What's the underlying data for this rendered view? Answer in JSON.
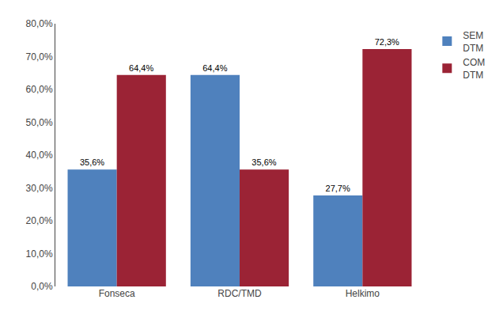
{
  "chart_data": {
    "type": "bar",
    "categories": [
      "Fonseca",
      "RDC/TMD",
      "Helkimo"
    ],
    "series": [
      {
        "name": "SEM\nDTM",
        "color": "#4F81BD",
        "values": [
          35.6,
          64.4,
          27.7
        ],
        "value_labels": [
          "35,6%",
          "64,4%",
          "27,7%"
        ]
      },
      {
        "name": "COM\nDTM",
        "color": "#9B2335",
        "values": [
          64.4,
          35.6,
          72.3
        ],
        "value_labels": [
          "64,4%",
          "35,6%",
          "72,3%"
        ]
      }
    ],
    "ylim": [
      0,
      80
    ],
    "yticks": [
      {
        "value": 0,
        "label": "0,0%"
      },
      {
        "value": 10,
        "label": "10,0%"
      },
      {
        "value": 20,
        "label": "20,0%"
      },
      {
        "value": 30,
        "label": "30,0%"
      },
      {
        "value": 40,
        "label": "40,0%"
      },
      {
        "value": 50,
        "label": "50,0%"
      },
      {
        "value": 60,
        "label": "60,0%"
      },
      {
        "value": 70,
        "label": "70,0%"
      },
      {
        "value": 80,
        "label": "80,0%"
      }
    ],
    "grid": false,
    "legend": "upper right",
    "data_labels": true
  }
}
